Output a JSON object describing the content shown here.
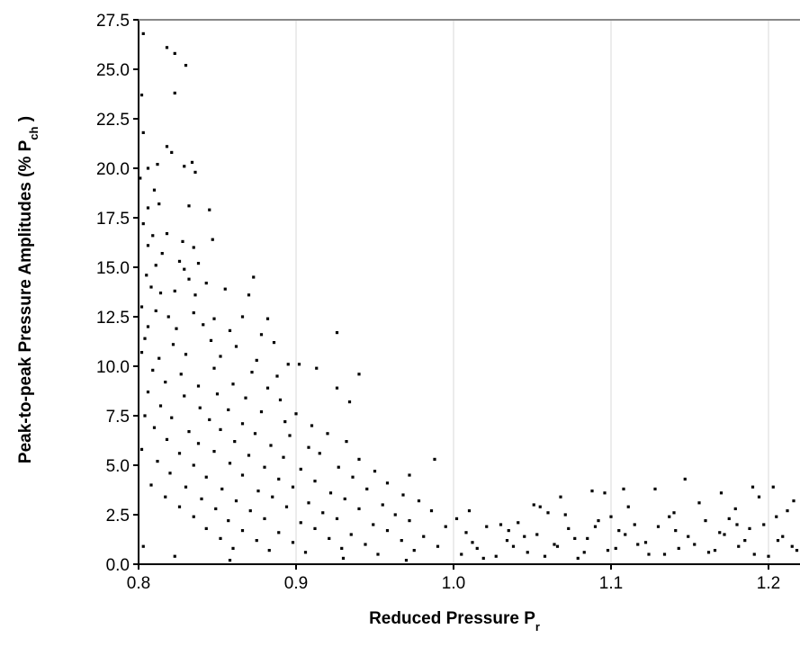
{
  "chart_data": {
    "type": "scatter",
    "title": "",
    "xlabel": {
      "main": "Reduced Pressure P",
      "sub": "r"
    },
    "ylabel": {
      "main": "Peak-to-peak Pressure Amplitudes (% P",
      "sub": "ch",
      "close": " )"
    },
    "xlim": [
      0.8,
      1.22
    ],
    "ylim": [
      0.0,
      27.5
    ],
    "x_ticks": [
      "0.8",
      "0.9",
      "1.0",
      "1.1",
      "1.2"
    ],
    "x_tick_values": [
      0.8,
      0.9,
      1.0,
      1.1,
      1.2
    ],
    "y_ticks": [
      "0.0",
      "2.5",
      "5.0",
      "7.5",
      "10.0",
      "12.5",
      "15.0",
      "17.5",
      "20.0",
      "22.5",
      "25.0",
      "27.5"
    ],
    "y_tick_values": [
      0.0,
      2.5,
      5.0,
      7.5,
      10.0,
      12.5,
      15.0,
      17.5,
      20.0,
      22.5,
      25.0,
      27.5
    ],
    "grid": {
      "vertical": true,
      "horizontal": false
    },
    "marker_color": "#000000",
    "grid_color": "#d8d8d8",
    "series": [
      {
        "points": [
          [
            0.803,
            26.8
          ],
          [
            0.818,
            26.1
          ],
          [
            0.823,
            25.8
          ],
          [
            0.83,
            25.2
          ],
          [
            0.802,
            23.7
          ],
          [
            0.823,
            23.8
          ],
          [
            0.803,
            21.8
          ],
          [
            0.818,
            21.1
          ],
          [
            0.821,
            20.8
          ],
          [
            0.806,
            20.0
          ],
          [
            0.812,
            20.2
          ],
          [
            0.829,
            20.1
          ],
          [
            0.834,
            20.3
          ],
          [
            0.836,
            19.8
          ],
          [
            0.801,
            19.5
          ],
          [
            0.81,
            18.9
          ],
          [
            0.813,
            18.2
          ],
          [
            0.806,
            18.0
          ],
          [
            0.832,
            18.1
          ],
          [
            0.845,
            17.9
          ],
          [
            0.803,
            17.2
          ],
          [
            0.809,
            16.6
          ],
          [
            0.818,
            16.7
          ],
          [
            0.828,
            16.3
          ],
          [
            0.835,
            16.0
          ],
          [
            0.847,
            16.4
          ],
          [
            0.806,
            16.1
          ],
          [
            0.815,
            15.7
          ],
          [
            0.811,
            15.1
          ],
          [
            0.826,
            15.3
          ],
          [
            0.829,
            14.9
          ],
          [
            0.838,
            15.2
          ],
          [
            0.805,
            14.6
          ],
          [
            0.832,
            14.4
          ],
          [
            0.843,
            14.2
          ],
          [
            0.873,
            14.5
          ],
          [
            0.808,
            14.0
          ],
          [
            0.814,
            13.7
          ],
          [
            0.823,
            13.8
          ],
          [
            0.836,
            13.6
          ],
          [
            0.855,
            13.9
          ],
          [
            0.87,
            13.6
          ],
          [
            0.802,
            13.0
          ],
          [
            0.811,
            12.8
          ],
          [
            0.819,
            12.5
          ],
          [
            0.835,
            12.7
          ],
          [
            0.848,
            12.4
          ],
          [
            0.866,
            12.5
          ],
          [
            0.882,
            12.4
          ],
          [
            0.806,
            12.0
          ],
          [
            0.824,
            11.9
          ],
          [
            0.841,
            12.1
          ],
          [
            0.858,
            11.8
          ],
          [
            0.878,
            11.6
          ],
          [
            0.804,
            11.4
          ],
          [
            0.822,
            11.1
          ],
          [
            0.846,
            11.3
          ],
          [
            0.862,
            11.0
          ],
          [
            0.886,
            11.2
          ],
          [
            0.926,
            11.7
          ],
          [
            0.802,
            10.7
          ],
          [
            0.813,
            10.4
          ],
          [
            0.83,
            10.6
          ],
          [
            0.852,
            10.5
          ],
          [
            0.875,
            10.3
          ],
          [
            0.895,
            10.1
          ],
          [
            0.902,
            10.1
          ],
          [
            0.913,
            9.9
          ],
          [
            0.809,
            9.8
          ],
          [
            0.827,
            9.6
          ],
          [
            0.848,
            9.9
          ],
          [
            0.872,
            9.7
          ],
          [
            0.888,
            9.5
          ],
          [
            0.94,
            9.6
          ],
          [
            0.817,
            9.2
          ],
          [
            0.838,
            9.0
          ],
          [
            0.86,
            9.1
          ],
          [
            0.882,
            8.9
          ],
          [
            0.926,
            8.9
          ],
          [
            0.806,
            8.7
          ],
          [
            0.829,
            8.5
          ],
          [
            0.85,
            8.6
          ],
          [
            0.868,
            8.4
          ],
          [
            0.89,
            8.3
          ],
          [
            0.934,
            8.2
          ],
          [
            0.814,
            8.0
          ],
          [
            0.839,
            7.9
          ],
          [
            0.857,
            7.8
          ],
          [
            0.878,
            7.7
          ],
          [
            0.9,
            7.6
          ],
          [
            0.804,
            7.5
          ],
          [
            0.821,
            7.4
          ],
          [
            0.845,
            7.3
          ],
          [
            0.866,
            7.1
          ],
          [
            0.893,
            7.2
          ],
          [
            0.91,
            7.0
          ],
          [
            0.81,
            6.9
          ],
          [
            0.832,
            6.7
          ],
          [
            0.852,
            6.8
          ],
          [
            0.874,
            6.6
          ],
          [
            0.896,
            6.5
          ],
          [
            0.92,
            6.6
          ],
          [
            0.818,
            6.3
          ],
          [
            0.838,
            6.1
          ],
          [
            0.861,
            6.2
          ],
          [
            0.884,
            6.0
          ],
          [
            0.908,
            5.9
          ],
          [
            0.932,
            6.2
          ],
          [
            0.802,
            5.8
          ],
          [
            0.826,
            5.6
          ],
          [
            0.848,
            5.7
          ],
          [
            0.87,
            5.5
          ],
          [
            0.892,
            5.4
          ],
          [
            0.915,
            5.6
          ],
          [
            0.94,
            5.3
          ],
          [
            0.988,
            5.3
          ],
          [
            0.812,
            5.2
          ],
          [
            0.835,
            5.0
          ],
          [
            0.858,
            5.1
          ],
          [
            0.88,
            4.9
          ],
          [
            0.903,
            4.8
          ],
          [
            0.927,
            4.9
          ],
          [
            0.95,
            4.7
          ],
          [
            0.972,
            4.5
          ],
          [
            0.82,
            4.6
          ],
          [
            0.843,
            4.4
          ],
          [
            0.866,
            4.5
          ],
          [
            0.889,
            4.3
          ],
          [
            0.912,
            4.2
          ],
          [
            0.936,
            4.4
          ],
          [
            0.958,
            4.1
          ],
          [
            0.808,
            4.0
          ],
          [
            0.83,
            3.9
          ],
          [
            0.853,
            3.8
          ],
          [
            0.876,
            3.7
          ],
          [
            0.898,
            3.9
          ],
          [
            0.922,
            3.6
          ],
          [
            0.945,
            3.8
          ],
          [
            0.968,
            3.5
          ],
          [
            0.817,
            3.4
          ],
          [
            0.84,
            3.3
          ],
          [
            0.862,
            3.2
          ],
          [
            0.885,
            3.4
          ],
          [
            0.908,
            3.1
          ],
          [
            0.931,
            3.3
          ],
          [
            0.955,
            3.0
          ],
          [
            0.978,
            3.2
          ],
          [
            0.826,
            2.9
          ],
          [
            0.849,
            2.8
          ],
          [
            0.871,
            2.7
          ],
          [
            0.894,
            2.9
          ],
          [
            0.917,
            2.6
          ],
          [
            0.94,
            2.8
          ],
          [
            0.963,
            2.5
          ],
          [
            0.986,
            2.7
          ],
          [
            0.835,
            2.4
          ],
          [
            0.857,
            2.2
          ],
          [
            0.88,
            2.3
          ],
          [
            0.903,
            2.1
          ],
          [
            0.926,
            2.3
          ],
          [
            0.949,
            2.0
          ],
          [
            0.972,
            2.2
          ],
          [
            0.995,
            1.9
          ],
          [
            0.843,
            1.8
          ],
          [
            0.866,
            1.7
          ],
          [
            0.889,
            1.6
          ],
          [
            0.912,
            1.8
          ],
          [
            0.935,
            1.5
          ],
          [
            0.958,
            1.7
          ],
          [
            0.981,
            1.4
          ],
          [
            0.852,
            1.3
          ],
          [
            0.875,
            1.2
          ],
          [
            0.898,
            1.1
          ],
          [
            0.921,
            1.3
          ],
          [
            0.944,
            1.0
          ],
          [
            0.967,
            1.2
          ],
          [
            0.99,
            0.9
          ],
          [
            0.86,
            0.8
          ],
          [
            0.883,
            0.7
          ],
          [
            0.906,
            0.6
          ],
          [
            0.929,
            0.8
          ],
          [
            0.952,
            0.5
          ],
          [
            0.975,
            0.7
          ],
          [
            0.803,
            0.9
          ],
          [
            0.823,
            0.4
          ],
          [
            0.858,
            0.2
          ],
          [
            0.93,
            0.3
          ],
          [
            0.97,
            0.2
          ],
          [
            1.002,
            2.3
          ],
          [
            1.008,
            1.6
          ],
          [
            1.015,
            0.8
          ],
          [
            1.021,
            1.9
          ],
          [
            1.027,
            0.4
          ],
          [
            1.034,
            1.2
          ],
          [
            1.041,
            2.1
          ],
          [
            1.047,
            0.6
          ],
          [
            1.053,
            1.5
          ],
          [
            1.06,
            2.6
          ],
          [
            1.066,
            0.9
          ],
          [
            1.073,
            1.8
          ],
          [
            1.079,
            0.3
          ],
          [
            1.085,
            1.3
          ],
          [
            1.092,
            2.2
          ],
          [
            1.098,
            0.7
          ],
          [
            1.105,
            1.7
          ],
          [
            1.111,
            2.9
          ],
          [
            1.117,
            1.0
          ],
          [
            1.124,
            0.5
          ],
          [
            1.13,
            1.9
          ],
          [
            1.137,
            2.4
          ],
          [
            1.143,
            0.8
          ],
          [
            1.149,
            1.4
          ],
          [
            1.156,
            3.1
          ],
          [
            1.162,
            0.6
          ],
          [
            1.169,
            1.6
          ],
          [
            1.175,
            2.3
          ],
          [
            1.181,
            0.9
          ],
          [
            1.188,
            1.8
          ],
          [
            1.194,
            3.4
          ],
          [
            1.2,
            0.4
          ],
          [
            1.206,
            1.2
          ],
          [
            1.212,
            2.7
          ],
          [
            1.218,
            0.7
          ],
          [
            1.005,
            0.5
          ],
          [
            1.012,
            1.1
          ],
          [
            1.019,
            0.3
          ],
          [
            1.03,
            2.0
          ],
          [
            1.038,
            0.9
          ],
          [
            1.045,
            1.4
          ],
          [
            1.051,
            3.0
          ],
          [
            1.058,
            0.4
          ],
          [
            1.064,
            1.0
          ],
          [
            1.071,
            2.5
          ],
          [
            1.077,
            1.3
          ],
          [
            1.083,
            0.6
          ],
          [
            1.09,
            1.9
          ],
          [
            1.096,
            3.6
          ],
          [
            1.103,
            0.8
          ],
          [
            1.109,
            1.5
          ],
          [
            1.115,
            2.0
          ],
          [
            1.122,
            1.1
          ],
          [
            1.128,
            3.8
          ],
          [
            1.134,
            0.5
          ],
          [
            1.141,
            1.7
          ],
          [
            1.147,
            4.3
          ],
          [
            1.153,
            1.0
          ],
          [
            1.16,
            2.2
          ],
          [
            1.166,
            0.7
          ],
          [
            1.172,
            1.5
          ],
          [
            1.179,
            2.8
          ],
          [
            1.185,
            1.2
          ],
          [
            1.191,
            0.5
          ],
          [
            1.197,
            2.0
          ],
          [
            1.203,
            3.9
          ],
          [
            1.209,
            1.4
          ],
          [
            1.215,
            0.9
          ],
          [
            1.22,
            4.4
          ],
          [
            1.068,
            3.4
          ],
          [
            1.088,
            3.7
          ],
          [
            1.108,
            3.8
          ],
          [
            1.17,
            3.6
          ],
          [
            1.19,
            3.9
          ],
          [
            1.01,
            2.7
          ],
          [
            1.055,
            2.9
          ],
          [
            1.035,
            1.7
          ],
          [
            1.1,
            2.4
          ],
          [
            1.14,
            2.6
          ],
          [
            1.18,
            2.0
          ],
          [
            1.205,
            2.4
          ],
          [
            1.216,
            3.2
          ]
        ]
      }
    ]
  }
}
